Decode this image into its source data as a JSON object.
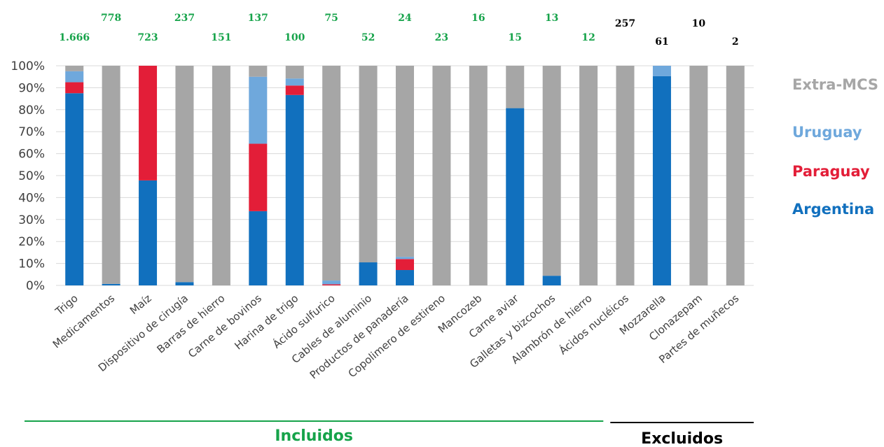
{
  "chart_data": {
    "type": "bar",
    "stacked": true,
    "normalized": true,
    "categories": [
      "Trigo",
      "Medicamentos",
      "Maíz",
      "Dispositivo de cirugía",
      "Barras de hierro",
      "Carne de bovinos",
      "Harina de trigo",
      "Ácido sulfurico",
      "Cables de aluminio",
      "Productos de panadería",
      "Copolimero de estireno",
      "Mancozeb",
      "Carne aviar",
      "Galletas y bizcochos",
      "Alambrón de hierro",
      "Ácidos nucléicos",
      "Mozzarella",
      "Clonazepam",
      "Partes de muñecos"
    ],
    "counts": [
      "1.666",
      "778",
      "723",
      "237",
      "151",
      "137",
      "100",
      "75",
      "52",
      "24",
      "23",
      "16",
      "15",
      "13",
      "12",
      "257",
      "61",
      "10",
      "2"
    ],
    "count_group": [
      "incl",
      "incl",
      "incl",
      "incl",
      "incl",
      "incl",
      "incl",
      "incl",
      "incl",
      "incl",
      "incl",
      "incl",
      "incl",
      "incl",
      "incl",
      "excl",
      "excl",
      "excl",
      "excl"
    ],
    "series": [
      {
        "name": "Argentina",
        "color": "#1170BE",
        "values": [
          87.5,
          0.7,
          47.8,
          1.5,
          0,
          33.8,
          86.7,
          0,
          10.5,
          7,
          0,
          0,
          80.7,
          4.4,
          0,
          0,
          95.3,
          0,
          0
        ]
      },
      {
        "name": "Paraguay",
        "color": "#E31E38",
        "values": [
          5,
          0,
          52.2,
          0,
          0,
          30.7,
          4.3,
          0.5,
          0,
          5,
          0,
          0,
          0,
          0,
          0,
          0,
          0,
          0,
          0
        ]
      },
      {
        "name": "Uruguay",
        "color": "#6FA8DC",
        "values": [
          5,
          0,
          0,
          0,
          0,
          30.5,
          3.2,
          1.7,
          0,
          1,
          0,
          0,
          0,
          0,
          0,
          0,
          4.7,
          0,
          0
        ]
      },
      {
        "name": "Extra-MCS",
        "color": "#A6A6A6",
        "values": [
          2.5,
          99.3,
          0,
          98.5,
          100,
          5,
          5.8,
          97.8,
          89.5,
          87,
          100,
          100,
          19.3,
          95.6,
          100,
          100,
          0,
          100,
          100
        ]
      }
    ],
    "ylim": [
      0,
      100
    ],
    "yticks": [
      "0%",
      "10%",
      "20%",
      "30%",
      "40%",
      "50%",
      "60%",
      "70%",
      "80%",
      "90%",
      "100%"
    ],
    "grid": true,
    "legend_order": [
      "Extra-MCS",
      "Uruguay",
      "Paraguay",
      "Argentina"
    ],
    "legend_position": "right",
    "groups": [
      {
        "label": "Incluidos",
        "color": "#16A34A",
        "from": 0,
        "to": 14
      },
      {
        "label": "Excluidos",
        "color": "#000000",
        "from": 15,
        "to": 18
      }
    ],
    "count_colors": {
      "incl": "#16A34A",
      "excl": "#000000"
    }
  }
}
